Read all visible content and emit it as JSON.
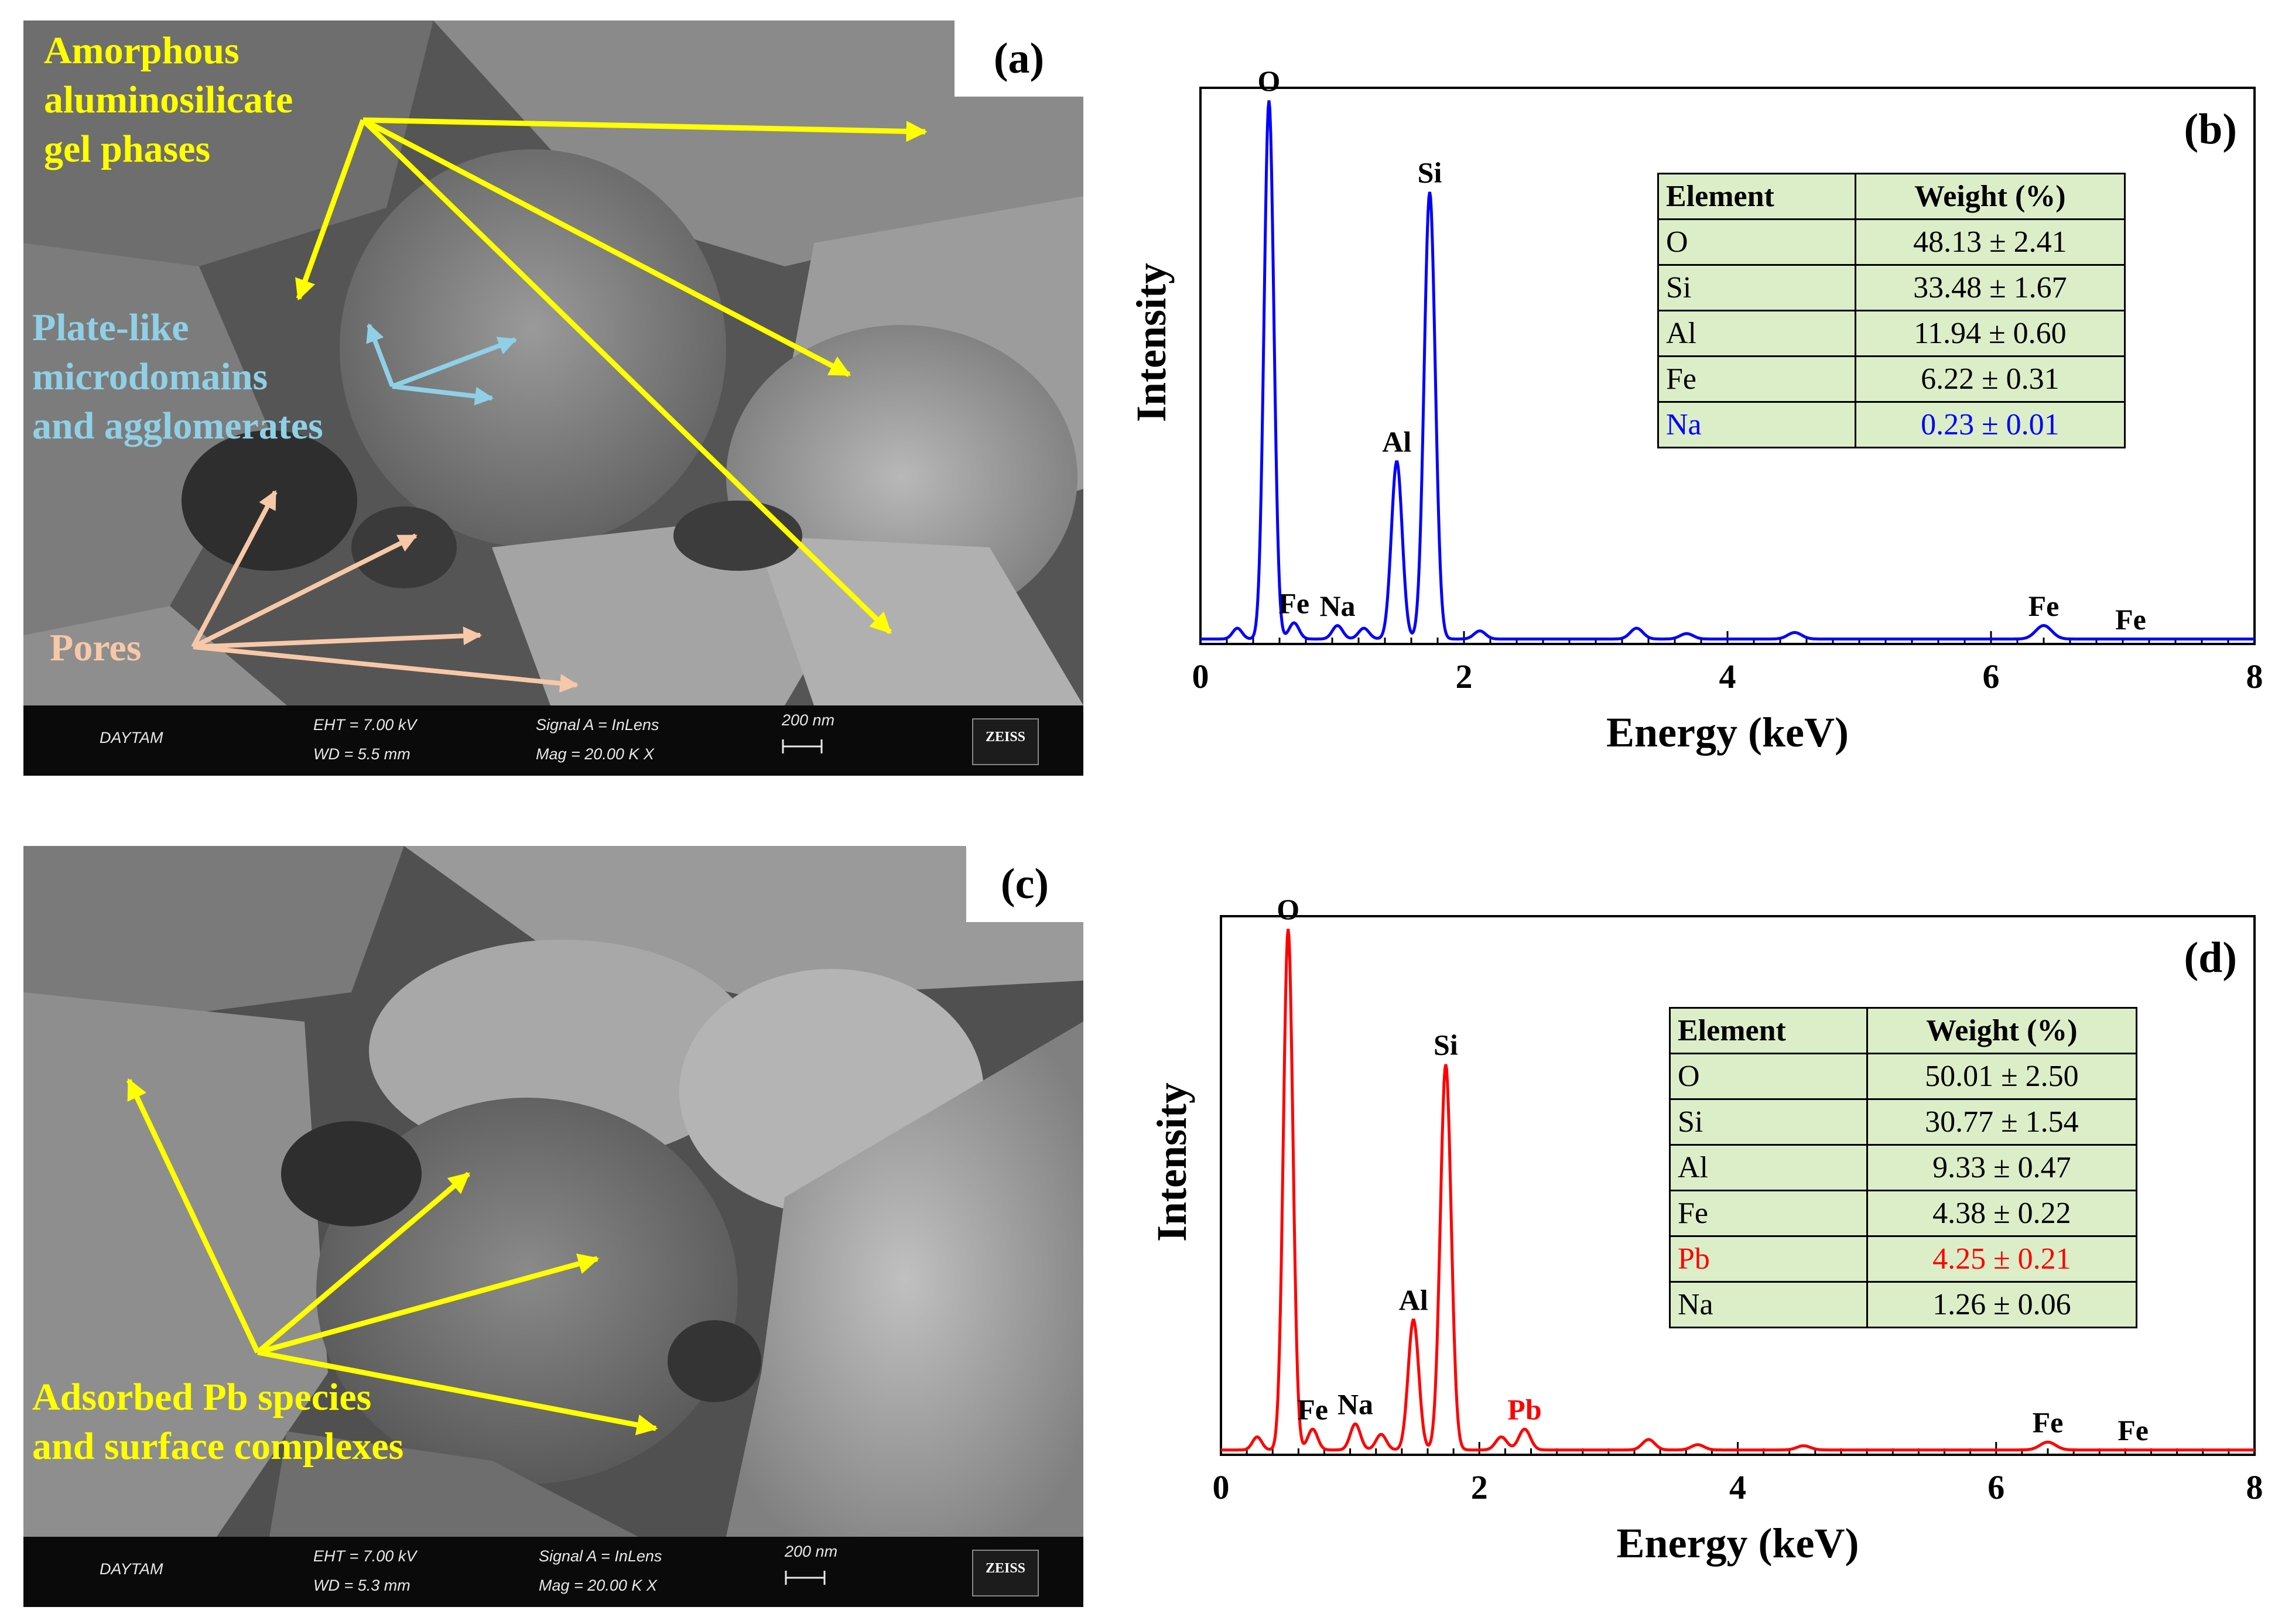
{
  "panels": {
    "a": {
      "letter": "(a)",
      "labels": {
        "gel": [
          "Amorphous",
          "aluminosilicate",
          "gel phases"
        ],
        "plate": [
          "Plate-like",
          "microdomains",
          "and agglomerates"
        ],
        "pores": "Pores"
      },
      "bar": {
        "operator": "DAYTAM",
        "eht": "EHT = 7.00 kV",
        "wd": "WD = 5.5 mm",
        "signal": "Signal A = InLens",
        "mag": "Mag = 20.00 K X",
        "scale": "200 nm",
        "logo": "ZEISS"
      }
    },
    "c": {
      "letter": "(c)",
      "labels": {
        "pb": [
          "Adsorbed Pb species",
          "and surface complexes"
        ]
      },
      "bar": {
        "operator": "DAYTAM",
        "eht": "EHT = 7.00 kV",
        "wd": "WD = 5.3 mm",
        "signal": "Signal A = InLens",
        "mag": "Mag = 20.00 K X",
        "scale": "200 nm",
        "logo": "ZEISS"
      }
    }
  },
  "colors": {
    "annotation_yellow": "#ffff00",
    "annotation_cyan": "#8fd0e6",
    "annotation_peach": "#f7c8a8",
    "table_fill": "#dceec8",
    "spectrum_b": "#0000ff",
    "spectrum_d": "#ff0000"
  },
  "chart_data": [
    {
      "panel": "b",
      "type": "line",
      "letter": "(b)",
      "xlabel": "Energy (keV)",
      "ylabel": "Intensity",
      "xlim": [
        0,
        8
      ],
      "ylim": [
        0,
        1
      ],
      "xticks": [
        0,
        2,
        4,
        6,
        8
      ],
      "grid": false,
      "color": "#0000ff",
      "peaks": [
        {
          "label": "O",
          "x": 0.52,
          "y": 1.0
        },
        {
          "label": "Fe",
          "x": 0.71,
          "y": 0.03
        },
        {
          "label": "Na",
          "x": 1.04,
          "y": 0.025
        },
        {
          "label": "Al",
          "x": 1.49,
          "y": 0.33
        },
        {
          "label": "Si",
          "x": 1.74,
          "y": 0.83
        },
        {
          "label": "Fe",
          "x": 6.4,
          "y": 0.025
        },
        {
          "label": "Fe",
          "x": 7.06,
          "y": 0.0
        }
      ],
      "minor_peaks": [
        {
          "x": 0.28,
          "y": 0.02
        },
        {
          "x": 1.24,
          "y": 0.02
        },
        {
          "x": 2.12,
          "y": 0.015
        },
        {
          "x": 3.31,
          "y": 0.02
        },
        {
          "x": 3.69,
          "y": 0.01
        },
        {
          "x": 4.51,
          "y": 0.012
        }
      ],
      "table": {
        "headers": [
          "Element",
          "Weight (%)"
        ],
        "rows": [
          [
            "O",
            "48.13 ± 2.41"
          ],
          [
            "Si",
            "33.48 ± 1.67"
          ],
          [
            "Al",
            "11.94 ± 0.60"
          ],
          [
            "Fe",
            "6.22 ± 0.31"
          ],
          [
            "Na",
            "0.23 ± 0.01"
          ]
        ],
        "highlight_row": 4,
        "highlight_color": "#0000ff"
      }
    },
    {
      "panel": "d",
      "type": "line",
      "letter": "(d)",
      "xlabel": "Energy (keV)",
      "ylabel": "Intensity",
      "xlim": [
        0,
        8
      ],
      "ylim": [
        0,
        1
      ],
      "xticks": [
        0,
        2,
        4,
        6,
        8
      ],
      "grid": false,
      "color": "#ff0000",
      "peaks": [
        {
          "label": "O",
          "x": 0.52,
          "y": 1.0
        },
        {
          "label": "Fe",
          "x": 0.71,
          "y": 0.04
        },
        {
          "label": "Na",
          "x": 1.04,
          "y": 0.05
        },
        {
          "label": "Al",
          "x": 1.49,
          "y": 0.25
        },
        {
          "label": "Si",
          "x": 1.74,
          "y": 0.74
        },
        {
          "label": "Pb",
          "x": 2.35,
          "y": 0.04,
          "color": "#ff0000"
        },
        {
          "label": "Fe",
          "x": 6.4,
          "y": 0.015
        },
        {
          "label": "Fe",
          "x": 7.06,
          "y": 0.0
        }
      ],
      "minor_peaks": [
        {
          "x": 0.28,
          "y": 0.025
        },
        {
          "x": 1.24,
          "y": 0.03
        },
        {
          "x": 2.17,
          "y": 0.025
        },
        {
          "x": 3.31,
          "y": 0.02
        },
        {
          "x": 3.69,
          "y": 0.01
        },
        {
          "x": 4.51,
          "y": 0.008
        }
      ],
      "table": {
        "headers": [
          "Element",
          "Weight (%)"
        ],
        "rows": [
          [
            "O",
            "50.01 ± 2.50"
          ],
          [
            "Si",
            "30.77 ± 1.54"
          ],
          [
            "Al",
            "9.33 ± 0.47"
          ],
          [
            "Fe",
            "4.38 ± 0.22"
          ],
          [
            "Pb",
            "4.25 ± 0.21"
          ],
          [
            "Na",
            "1.26 ± 0.06"
          ]
        ],
        "highlight_row": 4,
        "highlight_color": "#ff0000"
      }
    }
  ]
}
